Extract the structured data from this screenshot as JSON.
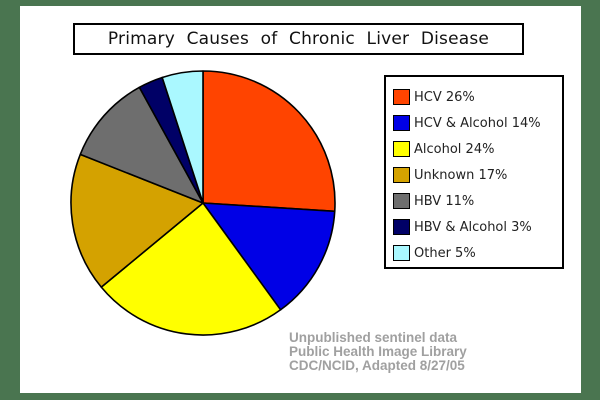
{
  "chart_data": {
    "type": "pie",
    "title": "Primary Causes of Chronic Liver Disease",
    "start_angle": "12 o'clock, clockwise",
    "categories": [
      "HCV",
      "HCV & Alcohol",
      "Alcohol",
      "Unknown",
      "HBV",
      "HBV & Alcohol",
      "Other"
    ],
    "values": [
      26,
      14,
      24,
      17,
      11,
      3,
      5
    ],
    "colors": [
      "#ff4400",
      "#0000e6",
      "#ffff00",
      "#d4a200",
      "#6e6e6e",
      "#000066",
      "#aaf8ff"
    ],
    "legend": [
      {
        "label": "HCV 26%",
        "color": "#ff4400"
      },
      {
        "label": "HCV & Alcohol 14%",
        "color": "#0000e6"
      },
      {
        "label": "Alcohol 24%",
        "color": "#ffff00"
      },
      {
        "label": "Unknown 17%",
        "color": "#d4a200"
      },
      {
        "label": "HBV 11%",
        "color": "#6e6e6e"
      },
      {
        "label": "HBV & Alcohol 3%",
        "color": "#000066"
      },
      {
        "label": "Other 5%",
        "color": "#aaf8ff"
      }
    ],
    "legend_position": "right",
    "annotations": [
      "Unpublished sentinel data",
      "Public Health Image Library",
      "CDC/NCID, Adapted 8/27/05"
    ]
  },
  "colors": {
    "background": "#4a7550",
    "panel": "#ffffff",
    "source_text": "#a0a0a0"
  }
}
